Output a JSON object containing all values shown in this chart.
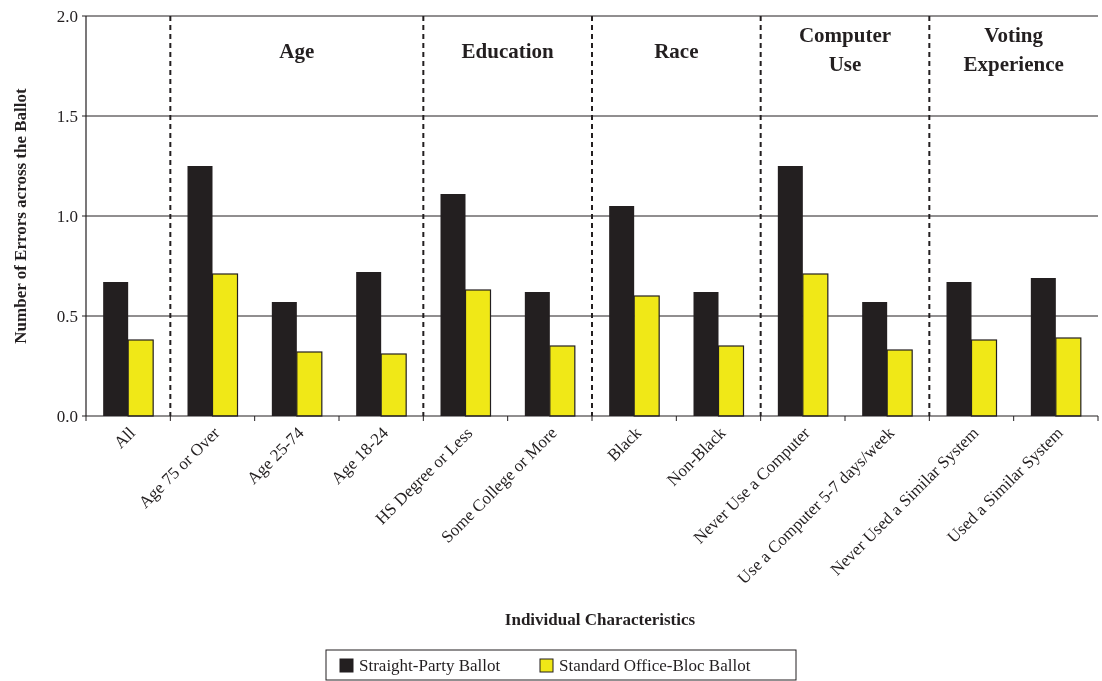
{
  "chart_data": {
    "type": "bar",
    "xlabel": "Individual Characteristics",
    "ylabel": "Number of Errors across the Ballot",
    "categories": [
      "All",
      "Age 75 or Over",
      "Age 25-74",
      "Age 18-24",
      "HS Degree or Less",
      "Some College or More",
      "Black",
      "Non-Black",
      "Never Use a Computer",
      "Use a Computer 5-7 days/week",
      "Never Used a Similar System",
      "Used a Similar System"
    ],
    "series": [
      {
        "name": "Straight-Party Ballot",
        "color": "#231f20",
        "values": [
          0.67,
          1.25,
          0.57,
          0.72,
          1.11,
          0.62,
          1.05,
          0.62,
          1.25,
          0.57,
          0.67,
          0.69
        ]
      },
      {
        "name": "Standard Office-Bloc Ballot",
        "color": "#f0e817",
        "values": [
          0.38,
          0.71,
          0.32,
          0.31,
          0.63,
          0.35,
          0.6,
          0.35,
          0.71,
          0.33,
          0.38,
          0.39
        ]
      }
    ],
    "ylim": [
      0,
      2
    ],
    "yticks": [
      {
        "value": 0,
        "label": "0.0"
      },
      {
        "value": 0.5,
        "label": "0.5"
      },
      {
        "value": 1,
        "label": "1.0"
      },
      {
        "value": 1.5,
        "label": "1.5"
      },
      {
        "value": 2,
        "label": "2.0"
      }
    ],
    "grid": "y",
    "legend": "bottom",
    "annotations": [
      "Age",
      "Education",
      "Race",
      "Computer Use",
      "Voting Experience"
    ]
  }
}
